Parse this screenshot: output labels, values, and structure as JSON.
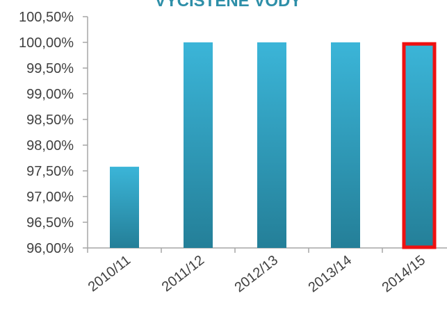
{
  "chart_data": {
    "type": "bar",
    "title": "VYČISTENÉ VODY",
    "categories": [
      "2010/11",
      "2011/12",
      "2012/13",
      "2013/14",
      "2014/15"
    ],
    "values": [
      97.58,
      100.0,
      100.0,
      100.0,
      99.97
    ],
    "ylim": [
      96.0,
      100.5
    ],
    "yticks": [
      "96,00%",
      "96,50%",
      "97,00%",
      "97,50%",
      "98,00%",
      "98,50%",
      "99,00%",
      "99,50%",
      "100,00%",
      "100,50%"
    ],
    "grid": false,
    "legend": "none",
    "highlighted_category": "2014/15",
    "colors": {
      "bar_top": "#3bb5d8",
      "bar_bottom": "#247f98",
      "highlight_border": "#ee1111",
      "axis": "#a6a6a6",
      "title": "#2e8fa8"
    }
  }
}
